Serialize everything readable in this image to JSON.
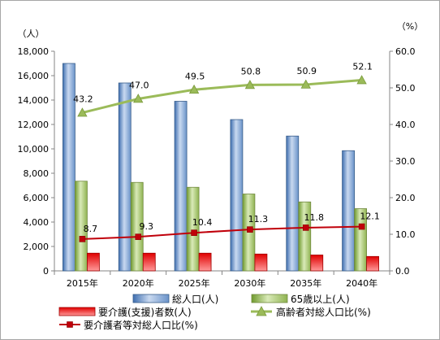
{
  "chart_data": {
    "type": "bar",
    "categories": [
      "2015年",
      "2020年",
      "2025年",
      "2030年",
      "2035年",
      "2040年"
    ],
    "y_left": {
      "unit": "（人）",
      "range": [
        0,
        18000
      ],
      "ticks": [
        "0",
        "2,000",
        "4,000",
        "6,000",
        "8,000",
        "10,000",
        "12,000",
        "14,000",
        "16,000",
        "18,000"
      ]
    },
    "y_right": {
      "unit": "（%）",
      "range": [
        0,
        60
      ],
      "ticks": [
        "0.0",
        "10.0",
        "20.0",
        "30.0",
        "40.0",
        "50.0",
        "60.0"
      ]
    },
    "series": [
      {
        "name": "総人口(人)",
        "type": "bar",
        "axis": "left",
        "color": "#4f81bd",
        "values": [
          17000,
          15400,
          13900,
          12400,
          11050,
          9850
        ]
      },
      {
        "name": "65歳以上(人)",
        "type": "bar",
        "axis": "left",
        "color": "#9bbb59",
        "values": [
          7350,
          7250,
          6850,
          6300,
          5650,
          5100
        ]
      },
      {
        "name": "要介護(支援)者数(人)",
        "type": "bar",
        "axis": "left",
        "color": "#e00000",
        "values": [
          1450,
          1450,
          1450,
          1380,
          1300,
          1180
        ]
      },
      {
        "name": "高齢者対総人口比(%)",
        "type": "line",
        "axis": "right",
        "color": "#9bbb59",
        "marker": "triangle",
        "values": [
          43.2,
          47.0,
          49.5,
          50.8,
          50.9,
          52.1
        ],
        "labels": [
          "43.2",
          "47.0",
          "49.5",
          "50.8",
          "50.9",
          "52.1"
        ]
      },
      {
        "name": "要介護者等対総人口比(%)",
        "type": "line",
        "axis": "right",
        "color": "#c0000a",
        "marker": "square",
        "values": [
          8.7,
          9.3,
          10.4,
          11.3,
          11.8,
          12.1
        ],
        "labels": [
          "8.7",
          "9.3",
          "10.4",
          "11.3",
          "11.8",
          "12.1"
        ]
      }
    ],
    "grid": false,
    "legend_position": "bottom"
  }
}
